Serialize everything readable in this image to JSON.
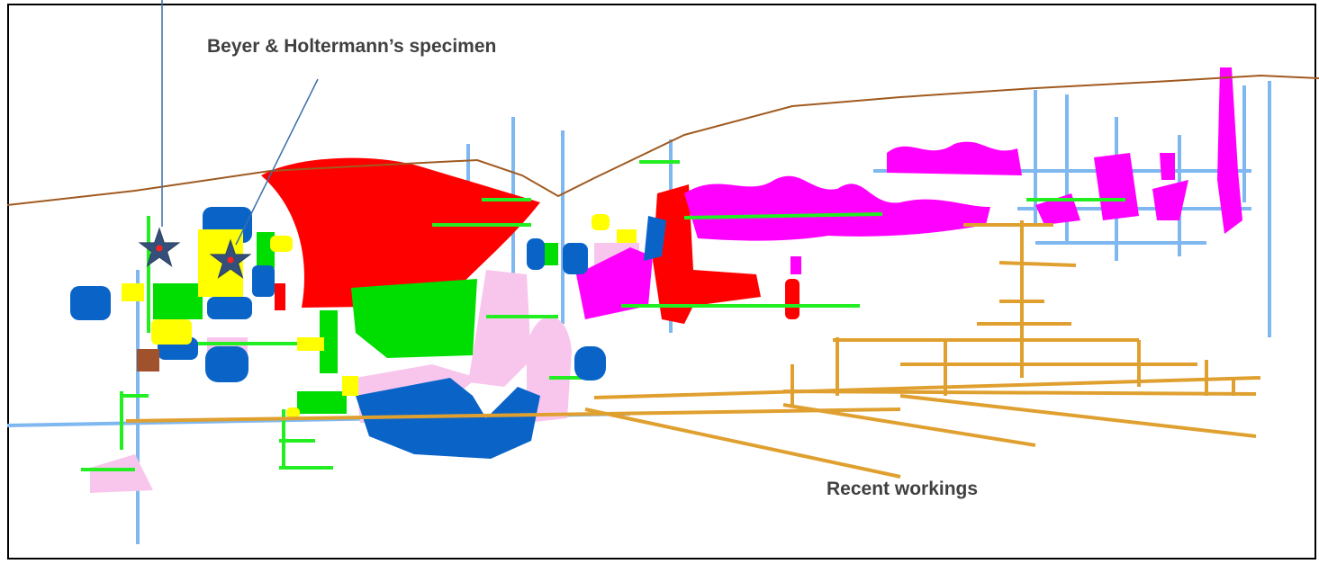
{
  "labels": {
    "specimen": "Beyer & Holtermann’s specimen",
    "recent": "Recent workings"
  }
}
